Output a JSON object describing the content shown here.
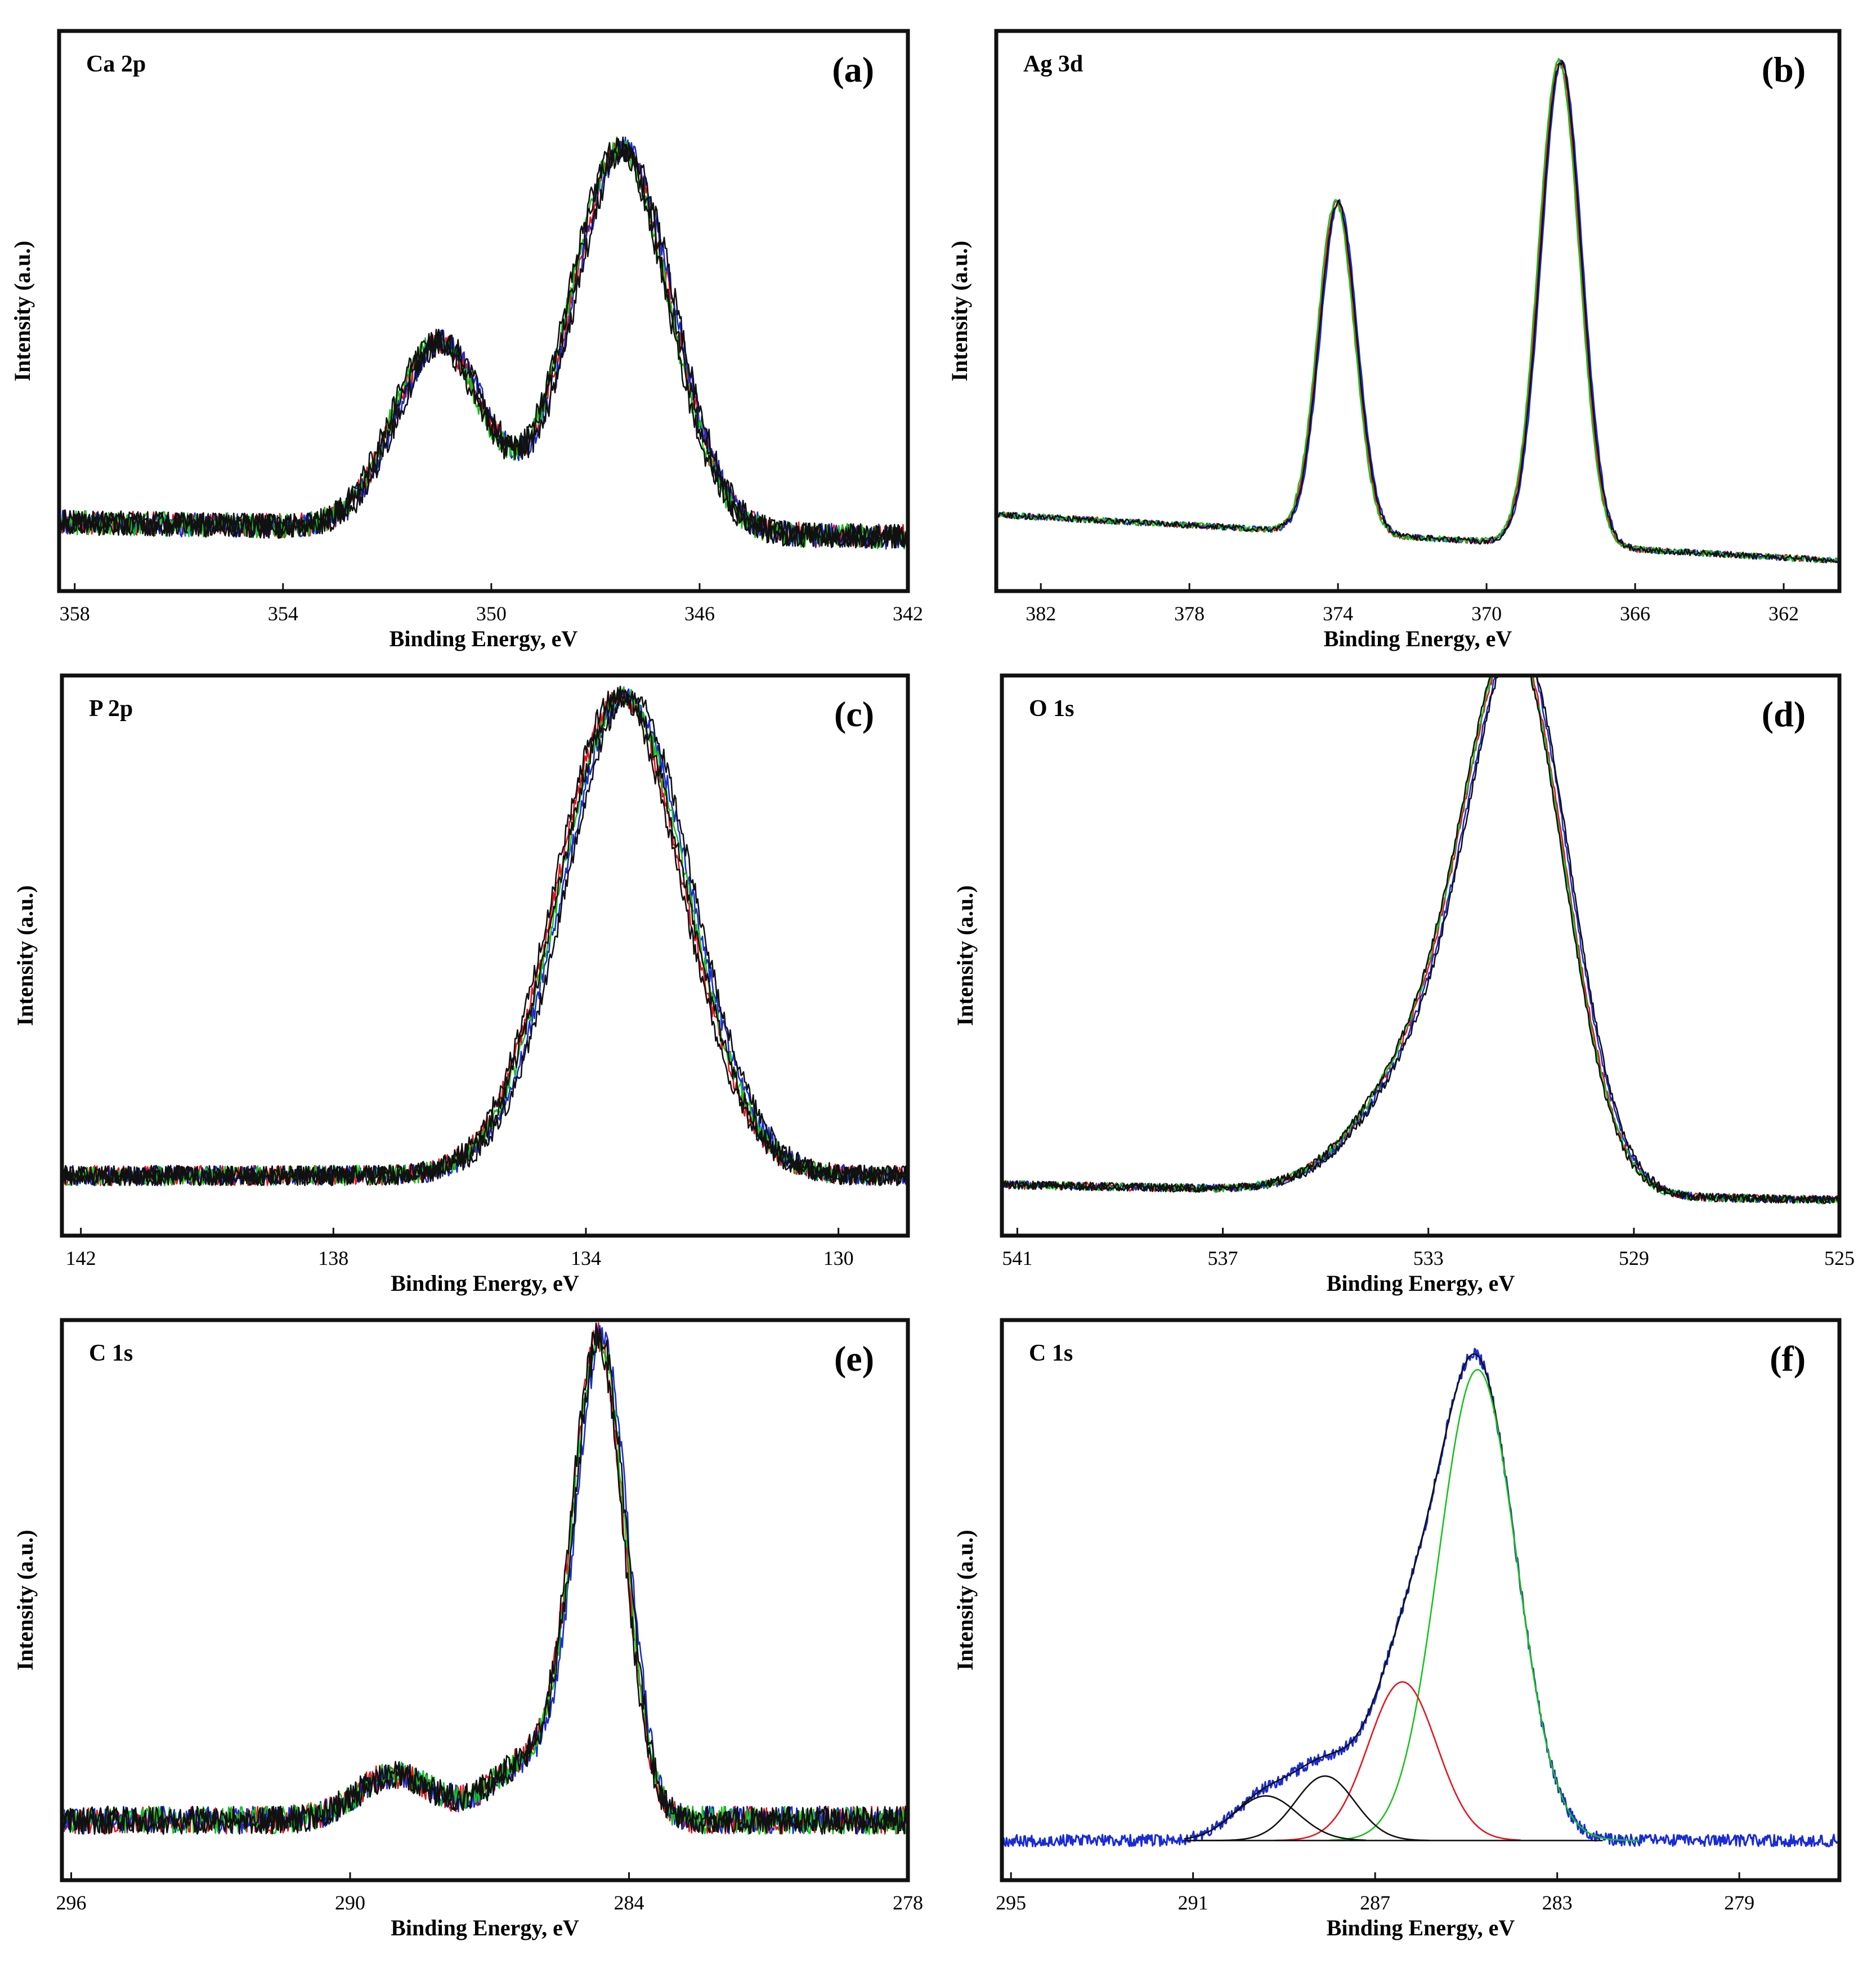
{
  "chart_data": [
    {
      "type": "line",
      "panel": "(a)",
      "title": "Ca 2p",
      "xlabel": "Binding Energy, eV",
      "ylabel": "Intensity (a.u.)",
      "xlim": [
        358.3,
        342.0
      ],
      "ylim": [
        -0.14,
        1.0
      ],
      "xticks": [
        358,
        354,
        350,
        346,
        342
      ],
      "peaks": [
        [
          347.5,
          0.78,
          0.95
        ],
        [
          351.0,
          0.38,
          0.85
        ]
      ],
      "baseline": [
        0.0,
        -0.03
      ],
      "noise": 0.025,
      "seed": 11,
      "series": [
        {
          "name": "red",
          "color": "#e8141e",
          "shift": 0.0
        },
        {
          "name": "blue",
          "color": "#1a2bd6",
          "shift": -0.05
        },
        {
          "name": "green",
          "color": "#18c21c",
          "shift": 0.04
        },
        {
          "name": "black 1",
          "color": "#111111",
          "shift": 0.08
        },
        {
          "name": "black 2",
          "color": "#111111",
          "shift": -0.08
        },
        {
          "name": "black 3",
          "color": "#111111",
          "shift": 0.02
        }
      ]
    },
    {
      "type": "line",
      "panel": "(b)",
      "title": "Ag 3d",
      "xlabel": "Binding Energy, eV",
      "ylabel": "Intensity (a.u.)",
      "xlim": [
        383.2,
        360.5
      ],
      "ylim": [
        -0.1,
        1.0
      ],
      "xticks": [
        382,
        378,
        374,
        370,
        366,
        362
      ],
      "peaks": [
        [
          368.0,
          0.95,
          0.55
        ],
        [
          374.0,
          0.65,
          0.5
        ]
      ],
      "baseline": [
        0.05,
        -0.04
      ],
      "noise": 0.006,
      "seed": 23,
      "series": [
        {
          "name": "red",
          "color": "#e8141e",
          "shift": 0.03
        },
        {
          "name": "blue",
          "color": "#1a2bd6",
          "shift": -0.03
        },
        {
          "name": "green",
          "color": "#18c21c",
          "shift": 0.06
        },
        {
          "name": "black",
          "color": "#111111",
          "shift": 0.0
        }
      ]
    },
    {
      "type": "line",
      "panel": "(c)",
      "title": "P 2p",
      "xlabel": "Binding Energy, eV",
      "ylabel": "Intensity (a.u.)",
      "xlim": [
        142.3,
        128.9
      ],
      "ylim": [
        -0.12,
        1.0
      ],
      "xticks": [
        142,
        138,
        134,
        130
      ],
      "peaks": [
        [
          133.4,
          0.96,
          1.0
        ]
      ],
      "baseline": [
        0.0,
        0.0
      ],
      "noise": 0.02,
      "seed": 37,
      "series": [
        {
          "name": "red",
          "color": "#e8141e",
          "shift": 0.05
        },
        {
          "name": "blue",
          "color": "#1a2bd6",
          "shift": -0.05
        },
        {
          "name": "green",
          "color": "#18c21c",
          "shift": 0.0
        },
        {
          "name": "black 1",
          "color": "#111111",
          "shift": 0.1
        },
        {
          "name": "black 2",
          "color": "#111111",
          "shift": -0.1
        },
        {
          "name": "black 3",
          "color": "#111111",
          "shift": 0.02
        }
      ]
    },
    {
      "type": "line",
      "panel": "(d)",
      "title": "O 1s",
      "xlabel": "Binding Energy, eV",
      "ylabel": "Intensity (a.u.)",
      "xlim": [
        541.3,
        525.0
      ],
      "ylim": [
        -0.1,
        1.0
      ],
      "xticks": [
        541,
        537,
        533,
        529,
        525
      ],
      "peaks": [
        [
          531.2,
          0.95,
          0.95
        ],
        [
          532.8,
          0.28,
          1.3
        ]
      ],
      "baseline": [
        0.0,
        -0.03
      ],
      "noise": 0.008,
      "seed": 41,
      "series": [
        {
          "name": "red",
          "color": "#e8141e",
          "shift": 0.03
        },
        {
          "name": "blue",
          "color": "#1a2bd6",
          "shift": -0.03
        },
        {
          "name": "green",
          "color": "#18c21c",
          "shift": 0.05
        },
        {
          "name": "black 1",
          "color": "#111111",
          "shift": 0.07
        },
        {
          "name": "black 2",
          "color": "#111111",
          "shift": -0.06
        }
      ]
    },
    {
      "type": "line",
      "panel": "(e)",
      "title": "C 1s",
      "xlabel": "Binding Energy, eV",
      "ylabel": "Intensity (a.u.)",
      "xlim": [
        296.2,
        278.0
      ],
      "ylim": [
        -0.12,
        1.0
      ],
      "xticks": [
        296,
        290,
        284,
        278
      ],
      "peaks": [
        [
          284.6,
          0.93,
          0.55
        ],
        [
          286.0,
          0.12,
          0.9
        ],
        [
          289.0,
          0.09,
          0.8
        ]
      ],
      "baseline": [
        0.0,
        0.0
      ],
      "noise": 0.028,
      "seed": 53,
      "series": [
        {
          "name": "red",
          "color": "#e8141e",
          "shift": 0.05
        },
        {
          "name": "blue",
          "color": "#1a2bd6",
          "shift": -0.04
        },
        {
          "name": "green",
          "color": "#18c21c",
          "shift": 0.02
        },
        {
          "name": "black 1",
          "color": "#111111",
          "shift": 0.0
        },
        {
          "name": "black 2",
          "color": "#111111",
          "shift": 0.07
        }
      ]
    },
    {
      "type": "line",
      "panel": "(f)",
      "title": "C 1s",
      "xlabel": "Binding Energy, eV",
      "ylabel": "Intensity (a.u.)",
      "xlim": [
        295.2,
        276.8
      ],
      "ylim": [
        -0.08,
        1.05
      ],
      "xticks": [
        295,
        291,
        287,
        283,
        279
      ],
      "peaks": [
        [
          284.75,
          0.95,
          0.85
        ],
        [
          286.4,
          0.32,
          0.75
        ],
        [
          288.1,
          0.13,
          0.65
        ],
        [
          289.4,
          0.09,
          0.7
        ]
      ],
      "baseline": [
        0.0,
        0.0
      ],
      "noise": 0.012,
      "seed": 67,
      "series": [
        {
          "name": "raw spectrum",
          "color": "#1a2bd6",
          "kind": "raw",
          "xrange": [
            295.2,
            276.8
          ]
        },
        {
          "name": "envelope fit",
          "color": "#111111",
          "kind": "envelope",
          "xrange": [
            290.6,
            282.0
          ]
        },
        {
          "name": "component 284.75 eV",
          "color": "#18c21c",
          "kind": "component",
          "index": 0,
          "xrange": [
            288.0,
            281.2
          ]
        },
        {
          "name": "component 286.4 eV",
          "color": "#e8141e",
          "kind": "component",
          "index": 1,
          "xrange": [
            289.2,
            283.8
          ]
        },
        {
          "name": "component 288.1 eV",
          "color": "#111111",
          "kind": "component",
          "index": 2,
          "xrange": [
            291.0,
            285.8
          ]
        },
        {
          "name": "component 289.4 eV",
          "color": "#111111",
          "kind": "component",
          "index": 3,
          "xrange": [
            291.2,
            287.2
          ]
        }
      ]
    }
  ]
}
